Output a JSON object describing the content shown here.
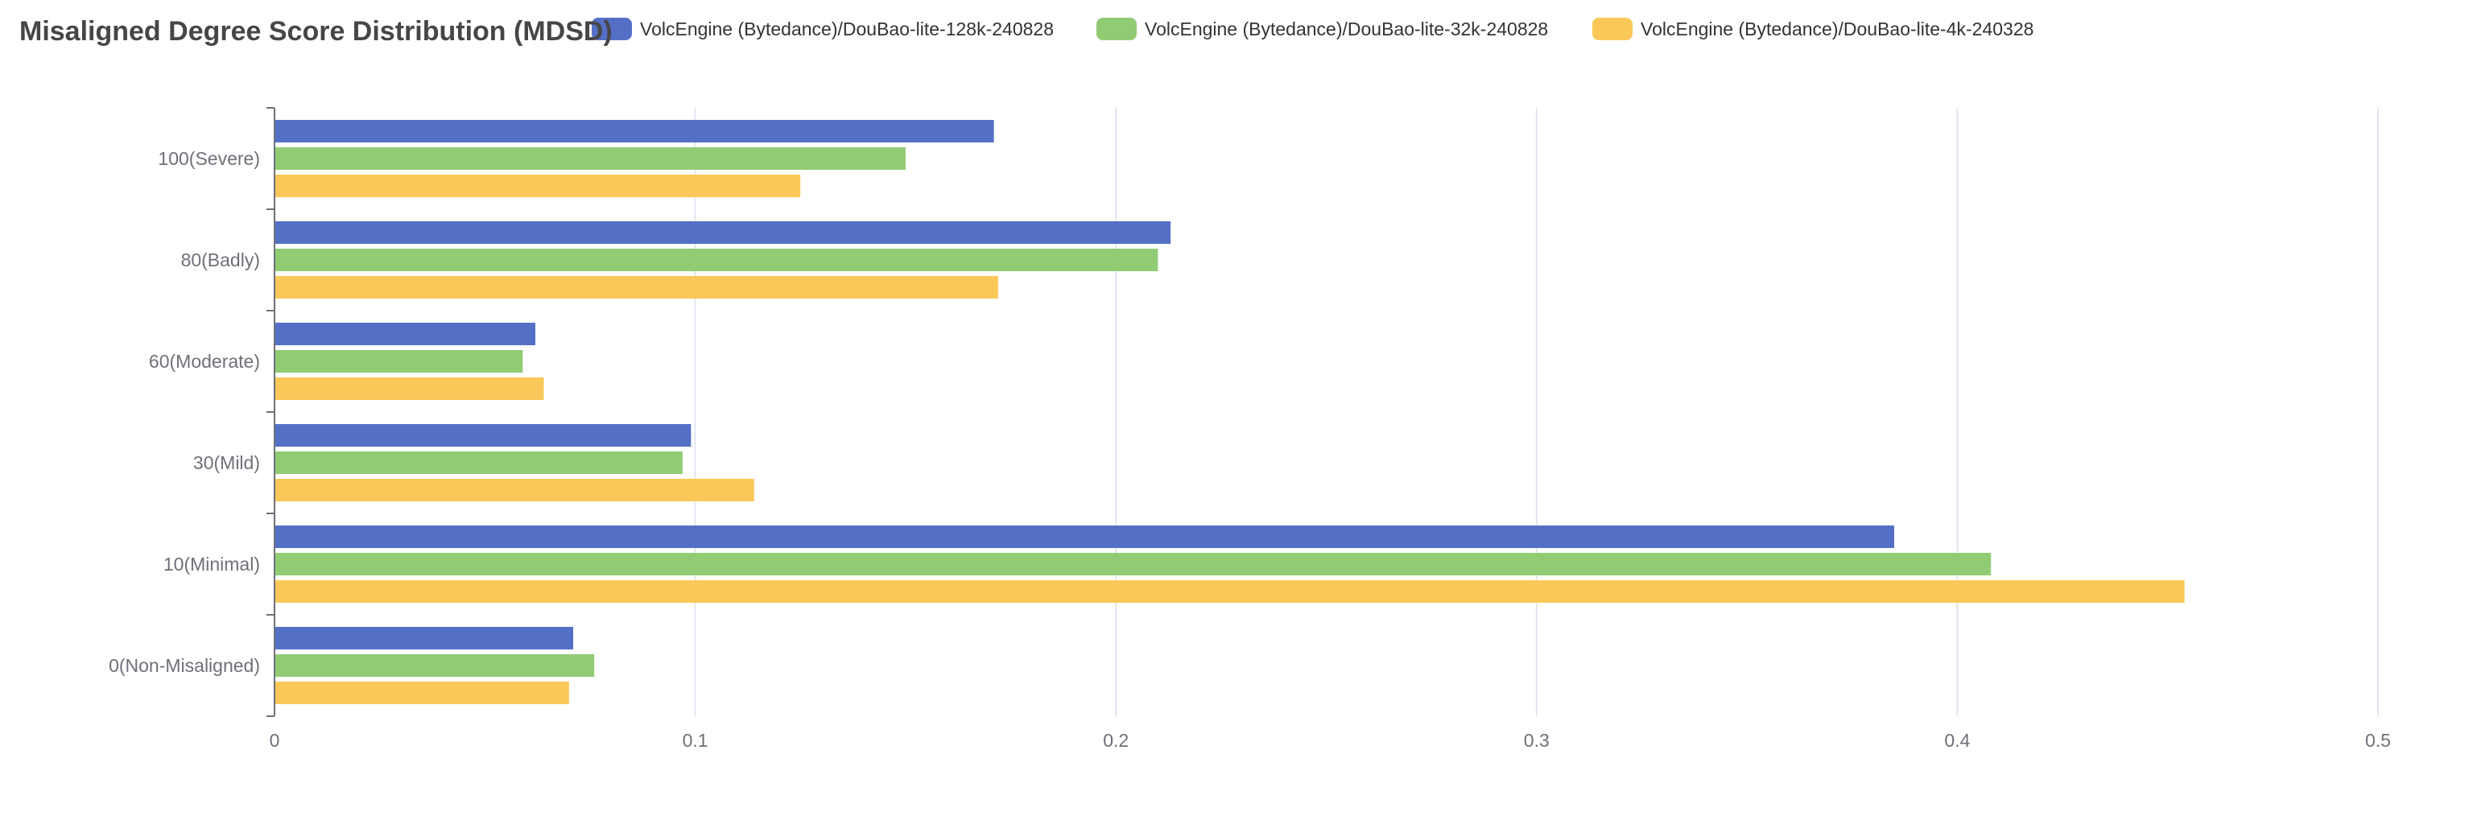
{
  "chart_data": {
    "type": "bar",
    "orientation": "horizontal",
    "title": "Misaligned Degree Score Distribution (MDSD)",
    "xlabel": "",
    "ylabel": "",
    "categories": [
      "100(Severe)",
      "80(Badly)",
      "60(Moderate)",
      "30(Mild)",
      "10(Minimal)",
      "0(Non-Misaligned)"
    ],
    "series": [
      {
        "name": "VolcEngine (Bytedance)/DouBao-lite-128k-240828",
        "color": "#5470c6",
        "values": [
          0.171,
          0.213,
          0.062,
          0.099,
          0.385,
          0.071
        ]
      },
      {
        "name": "VolcEngine (Bytedance)/DouBao-lite-32k-240828",
        "color": "#91cc75",
        "values": [
          0.15,
          0.21,
          0.059,
          0.097,
          0.408,
          0.076
        ]
      },
      {
        "name": "VolcEngine (Bytedance)/DouBao-lite-4k-240328",
        "color": "#fac858",
        "values": [
          0.125,
          0.172,
          0.064,
          0.114,
          0.454,
          0.07
        ]
      }
    ],
    "xlim": [
      0,
      0.5
    ],
    "xticks": [
      "0",
      "0.1",
      "0.2",
      "0.3",
      "0.4",
      "0.5"
    ],
    "grid": true,
    "legend_position": "top"
  }
}
